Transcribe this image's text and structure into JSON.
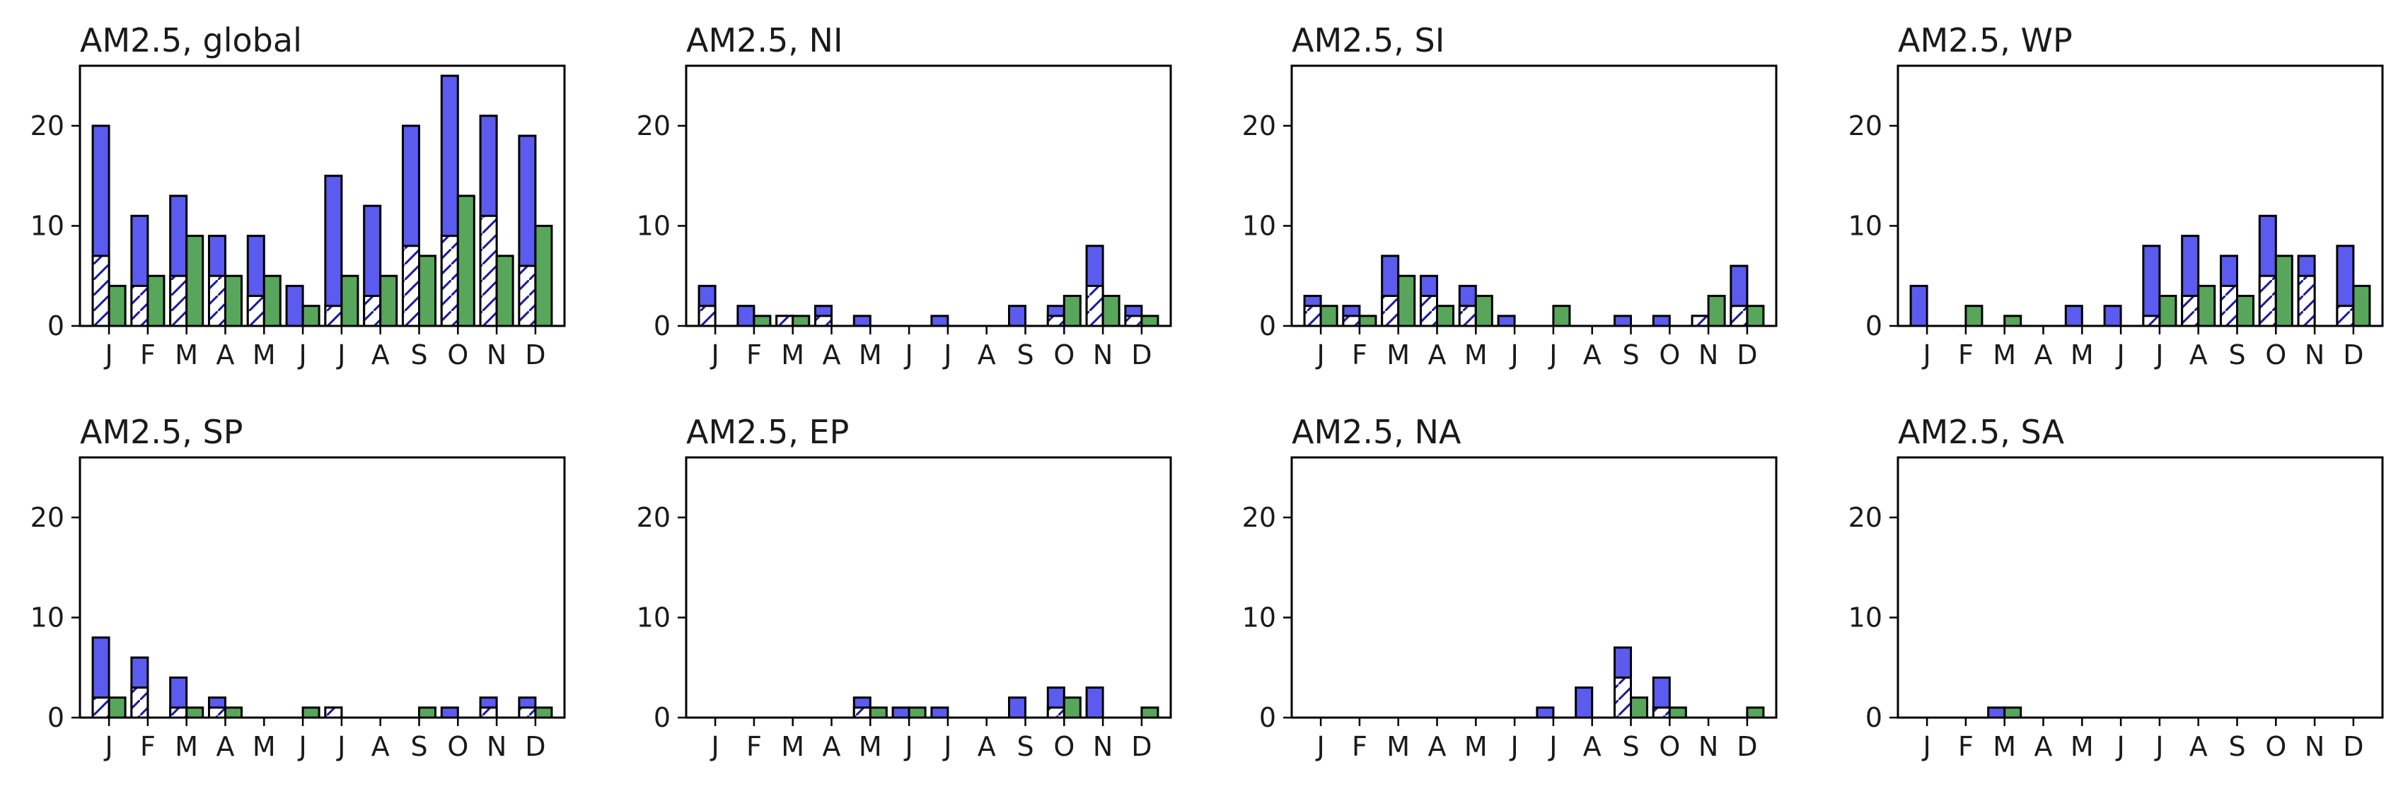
{
  "figure": {},
  "chart_data": [
    {
      "type": "bar",
      "title": "AM2.5, global",
      "categories": [
        "J",
        "F",
        "M",
        "A",
        "M",
        "J",
        "J",
        "A",
        "S",
        "O",
        "N",
        "D"
      ],
      "ylim": [
        0,
        26
      ],
      "yticks": [
        0,
        10,
        20
      ],
      "colors": {
        "total": "#5b5bef",
        "hatched": "#ffffff",
        "hatch_line": "#1a1aa0",
        "green": "#58a65c"
      },
      "series": [
        {
          "values": [
            20,
            11,
            13,
            9,
            9,
            4,
            15,
            12,
            20,
            25,
            21,
            19
          ]
        },
        {
          "values": [
            7,
            4,
            5,
            5,
            3,
            0,
            2,
            3,
            8,
            9,
            11,
            6
          ]
        },
        {
          "values": [
            4,
            5,
            9,
            5,
            5,
            2,
            5,
            5,
            7,
            13,
            7,
            10
          ]
        }
      ]
    },
    {
      "type": "bar",
      "title": "AM2.5, NI",
      "categories": [
        "J",
        "F",
        "M",
        "A",
        "M",
        "J",
        "J",
        "A",
        "S",
        "O",
        "N",
        "D"
      ],
      "ylim": [
        0,
        26
      ],
      "yticks": [
        0,
        10,
        20
      ],
      "series": [
        {
          "values": [
            4,
            2,
            1,
            2,
            1,
            0,
            1,
            0,
            2,
            2,
            8,
            2
          ]
        },
        {
          "values": [
            2,
            0,
            1,
            1,
            0,
            0,
            0,
            0,
            0,
            1,
            4,
            1
          ]
        },
        {
          "values": [
            0,
            1,
            1,
            0,
            0,
            0,
            0,
            0,
            0,
            3,
            3,
            1
          ]
        }
      ]
    },
    {
      "type": "bar",
      "title": "AM2.5, SI",
      "categories": [
        "J",
        "F",
        "M",
        "A",
        "M",
        "J",
        "J",
        "A",
        "S",
        "O",
        "N",
        "D"
      ],
      "ylim": [
        0,
        26
      ],
      "yticks": [
        0,
        10,
        20
      ],
      "series": [
        {
          "values": [
            3,
            2,
            7,
            5,
            4,
            1,
            0,
            0,
            1,
            1,
            1,
            6
          ]
        },
        {
          "values": [
            2,
            1,
            3,
            3,
            2,
            0,
            0,
            0,
            0,
            0,
            1,
            2
          ]
        },
        {
          "values": [
            2,
            1,
            5,
            2,
            3,
            0,
            2,
            0,
            0,
            0,
            3,
            2
          ]
        }
      ]
    },
    {
      "type": "bar",
      "title": "AM2.5, WP",
      "categories": [
        "J",
        "F",
        "M",
        "A",
        "M",
        "J",
        "J",
        "A",
        "S",
        "O",
        "N",
        "D"
      ],
      "ylim": [
        0,
        26
      ],
      "yticks": [
        0,
        10,
        20
      ],
      "series": [
        {
          "values": [
            4,
            0,
            0,
            0,
            2,
            2,
            8,
            9,
            7,
            11,
            7,
            8
          ]
        },
        {
          "values": [
            0,
            0,
            0,
            0,
            0,
            0,
            1,
            3,
            4,
            5,
            5,
            2
          ]
        },
        {
          "values": [
            0,
            2,
            1,
            0,
            0,
            0,
            3,
            4,
            3,
            7,
            0,
            4
          ]
        }
      ]
    },
    {
      "type": "bar",
      "title": "AM2.5, SP",
      "categories": [
        "J",
        "F",
        "M",
        "A",
        "M",
        "J",
        "J",
        "A",
        "S",
        "O",
        "N",
        "D"
      ],
      "ylim": [
        0,
        26
      ],
      "yticks": [
        0,
        10,
        20
      ],
      "series": [
        {
          "values": [
            8,
            6,
            4,
            2,
            0,
            0,
            1,
            0,
            0,
            1,
            2,
            2
          ]
        },
        {
          "values": [
            2,
            3,
            1,
            1,
            0,
            0,
            1,
            0,
            0,
            0,
            1,
            1
          ]
        },
        {
          "values": [
            2,
            0,
            1,
            1,
            0,
            1,
            0,
            0,
            1,
            0,
            0,
            1
          ]
        }
      ]
    },
    {
      "type": "bar",
      "title": "AM2.5, EP",
      "categories": [
        "J",
        "F",
        "M",
        "A",
        "M",
        "J",
        "J",
        "A",
        "S",
        "O",
        "N",
        "D"
      ],
      "ylim": [
        0,
        26
      ],
      "yticks": [
        0,
        10,
        20
      ],
      "series": [
        {
          "values": [
            0,
            0,
            0,
            0,
            2,
            1,
            1,
            0,
            2,
            3,
            3,
            0
          ]
        },
        {
          "values": [
            0,
            0,
            0,
            0,
            1,
            0,
            0,
            0,
            0,
            1,
            0,
            0
          ]
        },
        {
          "values": [
            0,
            0,
            0,
            0,
            1,
            1,
            0,
            0,
            0,
            2,
            0,
            1
          ]
        }
      ]
    },
    {
      "type": "bar",
      "title": "AM2.5, NA",
      "categories": [
        "J",
        "F",
        "M",
        "A",
        "M",
        "J",
        "J",
        "A",
        "S",
        "O",
        "N",
        "D"
      ],
      "ylim": [
        0,
        26
      ],
      "yticks": [
        0,
        10,
        20
      ],
      "series": [
        {
          "values": [
            0,
            0,
            0,
            0,
            0,
            0,
            1,
            3,
            7,
            4,
            0,
            0
          ]
        },
        {
          "values": [
            0,
            0,
            0,
            0,
            0,
            0,
            0,
            0,
            4,
            1,
            0,
            0
          ]
        },
        {
          "values": [
            0,
            0,
            0,
            0,
            0,
            0,
            0,
            0,
            2,
            1,
            0,
            1
          ]
        }
      ]
    },
    {
      "type": "bar",
      "title": "AM2.5, SA",
      "categories": [
        "J",
        "F",
        "M",
        "A",
        "M",
        "J",
        "J",
        "A",
        "S",
        "O",
        "N",
        "D"
      ],
      "ylim": [
        0,
        26
      ],
      "yticks": [
        0,
        10,
        20
      ],
      "series": [
        {
          "values": [
            0,
            0,
            1,
            0,
            0,
            0,
            0,
            0,
            0,
            0,
            0,
            0
          ]
        },
        {
          "values": [
            0,
            0,
            0,
            0,
            0,
            0,
            0,
            0,
            0,
            0,
            0,
            0
          ]
        },
        {
          "values": [
            0,
            0,
            1,
            0,
            0,
            0,
            0,
            0,
            0,
            0,
            0,
            0
          ]
        }
      ]
    }
  ]
}
